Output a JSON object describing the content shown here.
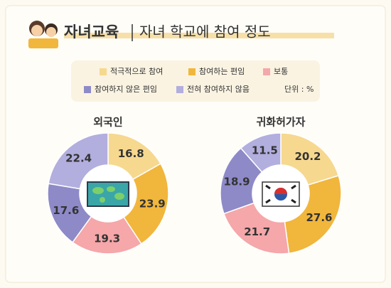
{
  "header": {
    "title": "자녀교육",
    "subtitle": "자녀 학교에 참여 정도"
  },
  "legend_note": "단위 : %",
  "chart_data": [
    {
      "type": "donut",
      "title": "외국인",
      "categories": [
        "적극적으로 참여",
        "참여하는 편임",
        "보통",
        "참여하지 않은 편임",
        "전혀 참여하지 않음"
      ],
      "colors": [
        "#f6d88f",
        "#f1b63c",
        "#f5a7a9",
        "#8e8ac8",
        "#b2aede"
      ],
      "values": [
        16.8,
        23.9,
        19.3,
        17.6,
        22.4
      ]
    },
    {
      "type": "donut",
      "title": "귀화허가자",
      "categories": [
        "적극적으로 참여",
        "참여하는 편임",
        "보통",
        "참여하지 않은 편임",
        "전혀 참여하지 않음"
      ],
      "colors": [
        "#f6d88f",
        "#f1b63c",
        "#f5a7a9",
        "#8e8ac8",
        "#b2aede"
      ],
      "values": [
        20.2,
        27.6,
        21.7,
        18.9,
        11.5
      ]
    }
  ]
}
